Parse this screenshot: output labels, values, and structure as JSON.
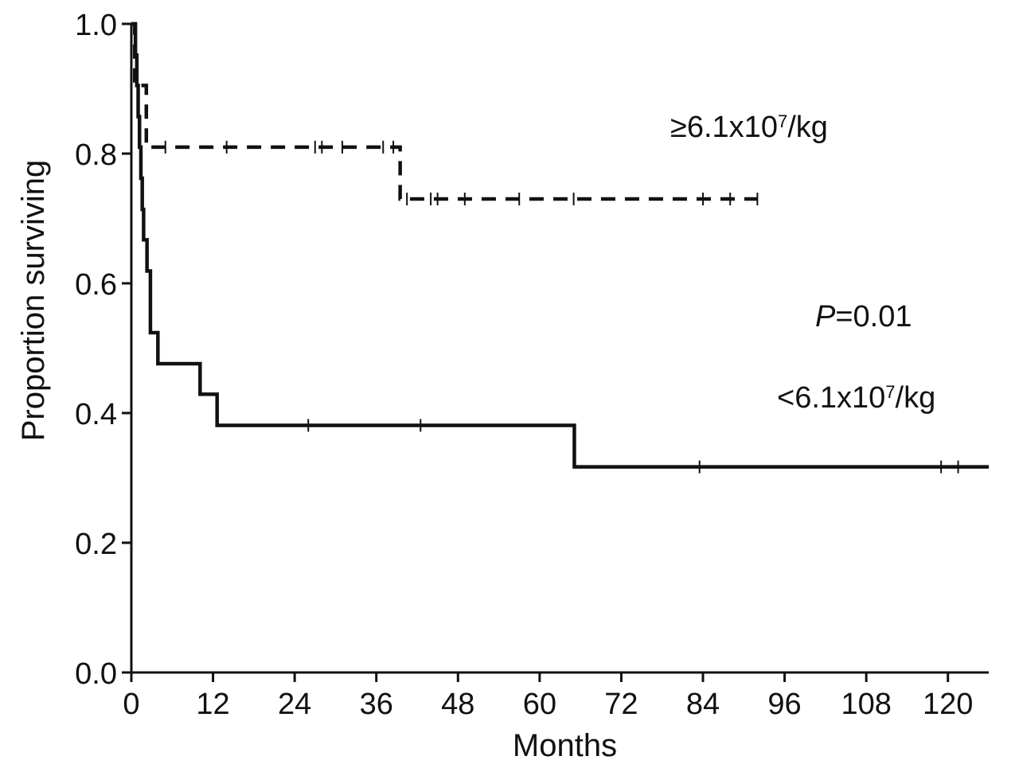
{
  "chart_data": {
    "type": "line",
    "subtype": "kaplan-meier survival curve",
    "xlabel": "Months",
    "ylabel": "Proportion surviving",
    "xlim": [
      0,
      126
    ],
    "ylim": [
      0,
      1
    ],
    "xticks": [
      0,
      12,
      24,
      36,
      48,
      60,
      72,
      84,
      96,
      108,
      120
    ],
    "yticks": [
      0.0,
      0.2,
      0.4,
      0.6,
      0.8,
      1.0
    ],
    "xtick_labels": [
      "0",
      "12",
      "24",
      "36",
      "48",
      "60",
      "72",
      "84",
      "96",
      "108",
      "120"
    ],
    "ytick_labels": [
      "0.0",
      "0.2",
      "0.4",
      "0.6",
      "0.8",
      "1.0"
    ],
    "p_value": {
      "prefix": "P",
      "text": "=0.01"
    },
    "series": [
      {
        "name": "≥6.1x10⁷/kg",
        "label_text": {
          "main": "≥6.1x10",
          "sup": "7",
          "unit": "/kg"
        },
        "style": "dashed",
        "steps": [
          [
            0,
            1.0
          ],
          [
            0.5,
            0.905
          ],
          [
            2.2,
            0.81
          ],
          [
            39.5,
            0.73
          ],
          [
            92,
            0.73
          ]
        ],
        "censored": [
          [
            5,
            0.81
          ],
          [
            14,
            0.81
          ],
          [
            27,
            0.81
          ],
          [
            28,
            0.81
          ],
          [
            31,
            0.81
          ],
          [
            37,
            0.81
          ],
          [
            38.5,
            0.81
          ],
          [
            40.5,
            0.73
          ],
          [
            44,
            0.73
          ],
          [
            45,
            0.73
          ],
          [
            49,
            0.73
          ],
          [
            57,
            0.73
          ],
          [
            65,
            0.73
          ],
          [
            84,
            0.73
          ],
          [
            88,
            0.73
          ],
          [
            92,
            0.73
          ]
        ]
      },
      {
        "name": "<6.1x10⁷/kg",
        "label_text": {
          "main": "<6.1x10",
          "sup": "7",
          "unit": "/kg"
        },
        "style": "solid",
        "steps": [
          [
            0,
            1.0
          ],
          [
            0.6,
            0.952
          ],
          [
            0.8,
            0.905
          ],
          [
            1.0,
            0.857
          ],
          [
            1.2,
            0.81
          ],
          [
            1.4,
            0.762
          ],
          [
            1.6,
            0.714
          ],
          [
            1.8,
            0.667
          ],
          [
            2.3,
            0.619
          ],
          [
            2.8,
            0.524
          ],
          [
            3.9,
            0.476
          ],
          [
            10.1,
            0.429
          ],
          [
            12.6,
            0.381
          ],
          [
            65.1,
            0.317
          ],
          [
            126,
            0.317
          ]
        ],
        "censored": [
          [
            26,
            0.381
          ],
          [
            42.5,
            0.381
          ],
          [
            83.5,
            0.317
          ],
          [
            119,
            0.317
          ],
          [
            121.5,
            0.317
          ]
        ]
      }
    ]
  }
}
